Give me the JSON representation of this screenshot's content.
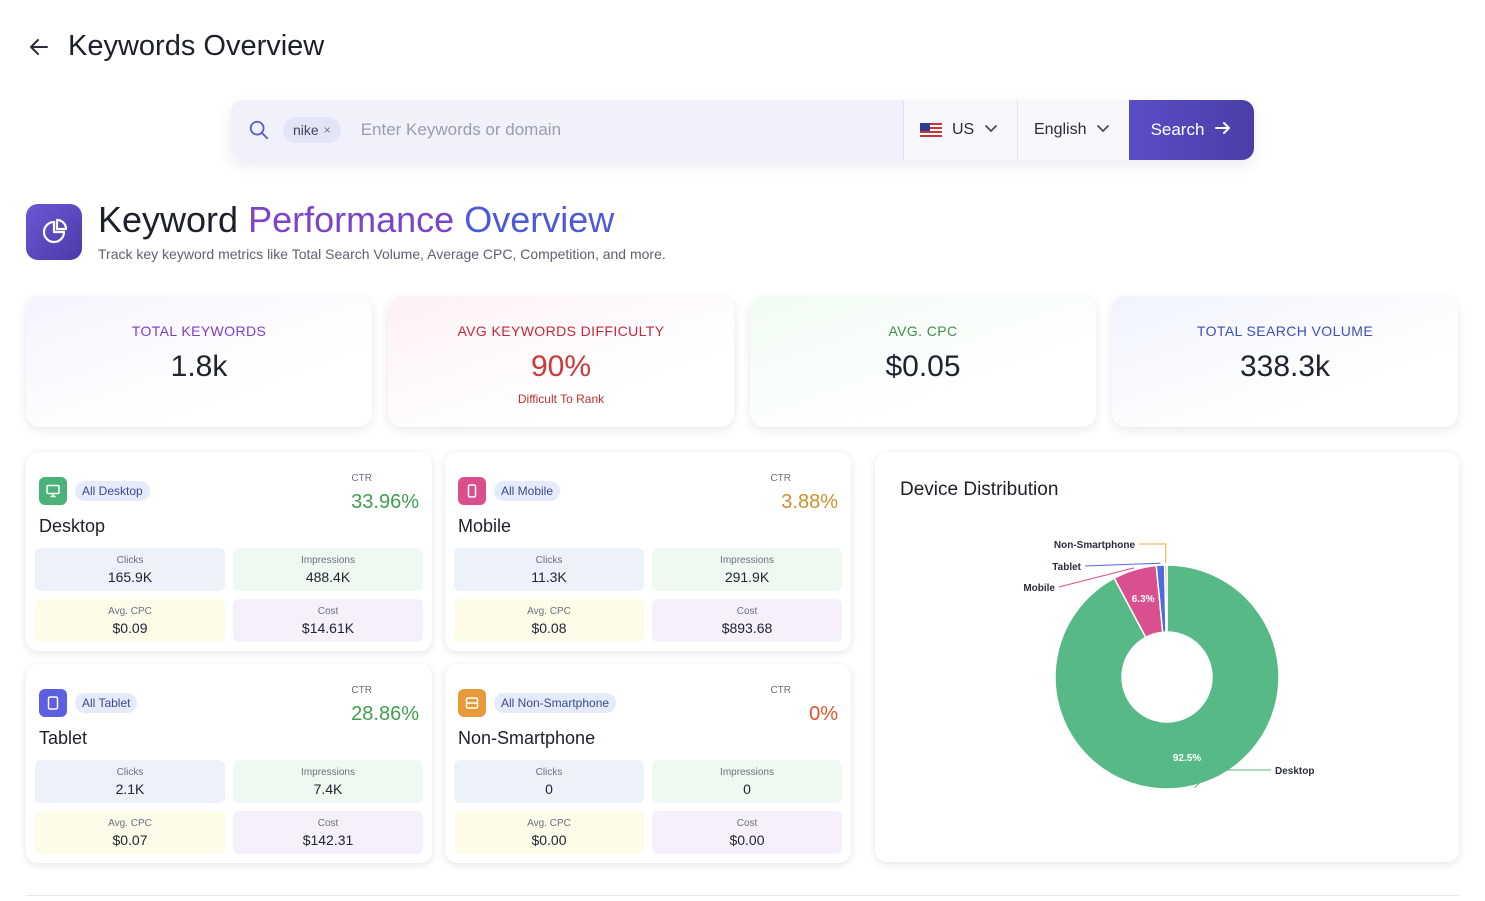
{
  "header": {
    "title": "Keywords Overview"
  },
  "search": {
    "chip": "nike",
    "chip_close": "×",
    "placeholder": "Enter Keywords or domain",
    "country": "US",
    "language": "English",
    "button": "Search"
  },
  "overview": {
    "title_part1": "Keyword",
    "title_part2": "Performance",
    "title_part3": "Overview",
    "subtitle": "Track key keyword metrics like Total Search Volume, Average CPC, Competition, and more."
  },
  "stats": [
    {
      "label": "TOTAL KEYWORDS",
      "value": "1.8k"
    },
    {
      "label": "AVG KEYWORDS DIFFICULTY",
      "value": "90%",
      "note": "Difficult To Rank"
    },
    {
      "label": "AVG. CPC",
      "value": "$0.05"
    },
    {
      "label": "TOTAL SEARCH VOLUME",
      "value": "338.3k"
    }
  ],
  "devices": {
    "desktop": {
      "badge": "All Desktop",
      "name": "Desktop",
      "ctr_label": "CTR",
      "ctr": "33.96%",
      "clicks_label": "Clicks",
      "clicks": "165.9K",
      "impr_label": "Impressions",
      "impr": "488.4K",
      "cpc_label": "Avg. CPC",
      "cpc": "$0.09",
      "cost_label": "Cost",
      "cost": "$14.61K",
      "color": "#4bb37a",
      "ctr_color": "#3f9e4f"
    },
    "mobile": {
      "badge": "All Mobile",
      "name": "Mobile",
      "ctr_label": "CTR",
      "ctr": "3.88%",
      "clicks_label": "Clicks",
      "clicks": "11.3K",
      "impr_label": "Impressions",
      "impr": "291.9K",
      "cpc_label": "Avg. CPC",
      "cpc": "$0.08",
      "cost_label": "Cost",
      "cost": "$893.68",
      "color": "#d94f8e",
      "ctr_color": "#c9932a"
    },
    "tablet": {
      "badge": "All Tablet",
      "name": "Tablet",
      "ctr_label": "CTR",
      "ctr": "28.86%",
      "clicks_label": "Clicks",
      "clicks": "2.1K",
      "impr_label": "Impressions",
      "impr": "7.4K",
      "cpc_label": "Avg. CPC",
      "cpc": "$0.07",
      "cost_label": "Cost",
      "cost": "$142.31",
      "color": "#5b5fe0",
      "ctr_color": "#3f9e4f"
    },
    "nonsmart": {
      "badge": "All Non-Smartphone",
      "name": "Non-Smartphone",
      "ctr_label": "CTR",
      "ctr": "0%",
      "clicks_label": "Clicks",
      "clicks": "0",
      "impr_label": "Impressions",
      "impr": "0",
      "cpc_label": "Avg. CPC",
      "cpc": "$0.00",
      "cost_label": "Cost",
      "cost": "$0.00",
      "color": "#e89a3a",
      "ctr_color": "#e0552b"
    }
  },
  "distribution": {
    "title": "Device Distribution"
  },
  "chart_data": {
    "type": "pie",
    "donut": true,
    "categories": [
      "Desktop",
      "Mobile",
      "Tablet",
      "Non-Smartphone"
    ],
    "values": [
      92.5,
      6.3,
      1.2,
      0.0
    ],
    "colors": [
      "#57b985",
      "#da4f8e",
      "#4e6ae3",
      "#e9a93b"
    ],
    "data_labels": [
      "92.5%",
      "6.3%",
      "",
      ""
    ]
  }
}
